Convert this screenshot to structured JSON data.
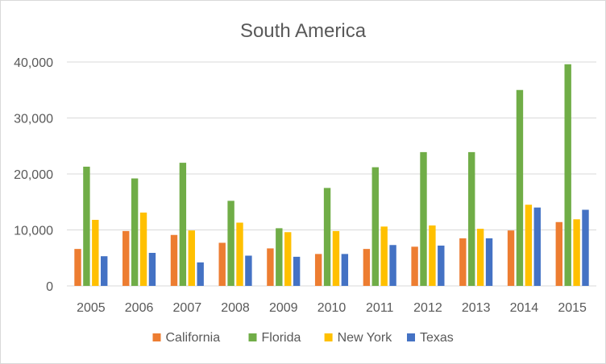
{
  "chart_data": {
    "type": "bar",
    "title": "South America",
    "xlabel": "",
    "ylabel": "",
    "categories": [
      "2005",
      "2006",
      "2007",
      "2008",
      "2009",
      "2010",
      "2011",
      "2012",
      "2013",
      "2014",
      "2015"
    ],
    "ylim": [
      0,
      40000
    ],
    "yticks": [
      0,
      10000,
      20000,
      30000,
      40000
    ],
    "ytick_labels": [
      "0",
      "10,000",
      "20,000",
      "30,000",
      "40,000"
    ],
    "grid": true,
    "legend_position": "bottom",
    "series": [
      {
        "name": "California",
        "color": "#ed7d31",
        "values": [
          6600,
          9800,
          9100,
          7700,
          6700,
          5700,
          6600,
          7000,
          8500,
          9900,
          11400
        ]
      },
      {
        "name": "Florida",
        "color": "#70ad47",
        "values": [
          21300,
          19200,
          22000,
          15200,
          10300,
          17500,
          21200,
          23900,
          23900,
          35000,
          39600
        ]
      },
      {
        "name": "New York",
        "color": "#ffc000",
        "values": [
          11800,
          13100,
          9900,
          11300,
          9600,
          9800,
          10600,
          10800,
          10200,
          14500,
          11900
        ]
      },
      {
        "name": "Texas",
        "color": "#4472c4",
        "values": [
          5300,
          5900,
          4200,
          5400,
          5200,
          5700,
          7300,
          7200,
          8500,
          14000,
          13600
        ]
      }
    ]
  }
}
